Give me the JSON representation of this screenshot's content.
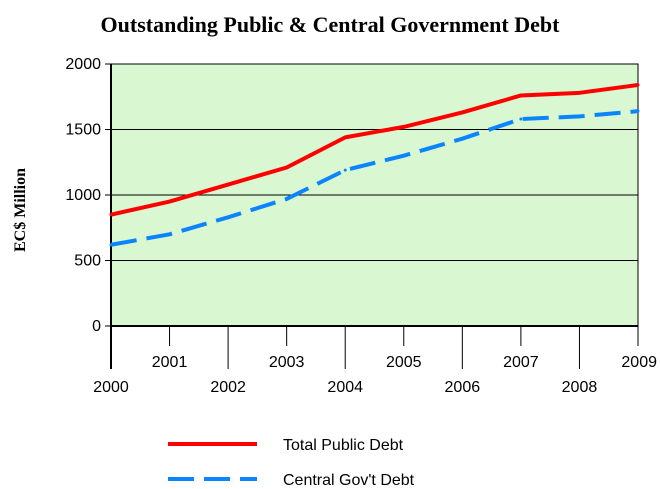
{
  "chart_data": {
    "type": "line",
    "title": "Outstanding Public & Central Government Debt",
    "xlabel": "",
    "ylabel": "EC$ Million",
    "x": [
      "2000",
      "2001",
      "2002",
      "2003",
      "2004",
      "2005",
      "2006",
      "2007",
      "2008",
      "2009"
    ],
    "ylim": [
      0,
      2000
    ],
    "yticks": [
      0,
      500,
      1000,
      1500,
      2000
    ],
    "grid": true,
    "background": "#d9f7d0",
    "legend_position": "bottom",
    "series": [
      {
        "name": "Total Public Debt",
        "color": "#ff0000",
        "style": "solid",
        "values": [
          850,
          950,
          1080,
          1210,
          1440,
          1520,
          1630,
          1760,
          1780,
          1840
        ]
      },
      {
        "name": "Central Gov't Debt",
        "color": "#0a84ff",
        "style": "dashed",
        "values": [
          620,
          700,
          830,
          970,
          1190,
          1300,
          1430,
          1580,
          1600,
          1640
        ]
      }
    ]
  }
}
